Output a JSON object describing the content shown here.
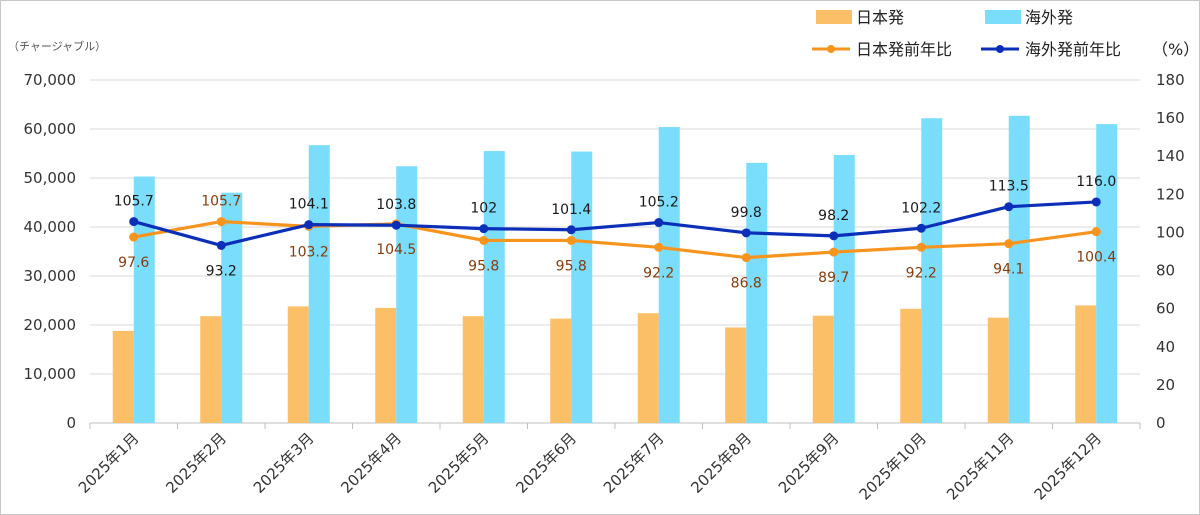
{
  "chart_data": {
    "type": "bar",
    "categories": [
      "2025年1月",
      "2025年2月",
      "2025年3月",
      "2025年4月",
      "2025年5月",
      "2025年6月",
      "2025年7月",
      "2025年8月",
      "2025年9月",
      "2025年10月",
      "2025年11月",
      "2025年12月"
    ],
    "series": [
      {
        "name": "日本発",
        "type": "bar",
        "axis": "left",
        "color": "#FBBF68",
        "values": [
          18800,
          21800,
          23800,
          23500,
          21800,
          21300,
          22400,
          19500,
          21900,
          23300,
          21500,
          24000
        ]
      },
      {
        "name": "海外発",
        "type": "bar",
        "axis": "left",
        "color": "#7ADDFB",
        "values": [
          50300,
          47000,
          56700,
          52400,
          55500,
          55400,
          60400,
          53100,
          54700,
          62200,
          62700,
          61000
        ]
      },
      {
        "name": "日本発前年比",
        "type": "line",
        "axis": "right",
        "color": "#F7941D",
        "label_color": "#843C0C",
        "values": [
          97.6,
          105.7,
          103.2,
          104.5,
          95.8,
          95.8,
          92.2,
          86.8,
          89.7,
          92.2,
          94.1,
          100.4
        ],
        "labels": [
          "97.6",
          "105.7",
          "103.2",
          "104.5",
          "95.8",
          "95.8",
          "92.2",
          "86.8",
          "89.7",
          "92.2",
          "94.1",
          "100.4"
        ]
      },
      {
        "name": "海外発前年比",
        "type": "line",
        "axis": "right",
        "color": "#0B2FB8",
        "label_color": "#1A1A1A",
        "values": [
          105.7,
          93.2,
          104.1,
          103.8,
          102.0,
          101.4,
          105.2,
          99.8,
          98.2,
          102.2,
          113.5,
          116.0
        ],
        "labels": [
          "105.7",
          "93.2",
          "104.1",
          "103.8",
          "102",
          "101.4",
          "105.2",
          "99.8",
          "98.2",
          "102.2",
          "113.5",
          "116.0"
        ]
      }
    ],
    "y_left": {
      "label": "（チャージャブル）",
      "min": 0,
      "max": 70000,
      "step": 10000,
      "ticks": [
        "0",
        "10,000",
        "20,000",
        "30,000",
        "40,000",
        "50,000",
        "60,000",
        "70,000"
      ]
    },
    "y_right": {
      "label": "（%）",
      "min": 0,
      "max": 180,
      "step": 20,
      "ticks": [
        "0",
        "20",
        "40",
        "60",
        "80",
        "100",
        "120",
        "140",
        "160",
        "180"
      ]
    },
    "legend_position": "top-right",
    "grid": true
  },
  "colors": {
    "grid": "#D9D9D9",
    "axis": "#BFBFBF",
    "border": "#C8C8C8"
  }
}
